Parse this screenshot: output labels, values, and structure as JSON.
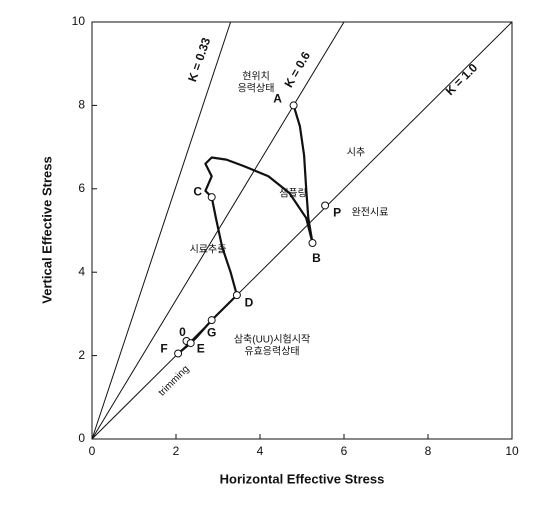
{
  "chart_data": {
    "type": "line",
    "xlabel": "Horizontal Effective Stress",
    "ylabel": "Vertical Effective Stress",
    "xlim": [
      0,
      10
    ],
    "ylim": [
      0,
      10
    ],
    "xticks": [
      0,
      2,
      4,
      6,
      8,
      10
    ],
    "yticks": [
      0,
      2,
      4,
      6,
      8,
      10
    ],
    "reference_lines": [
      {
        "label": "K = 0.33",
        "k": 0.33
      },
      {
        "label": "K = 0.6",
        "k": 0.6
      },
      {
        "label": "K = 1.0",
        "k": 1.0
      }
    ],
    "series": [
      {
        "color": "#111111",
        "x": [
          4.8,
          4.95,
          5.05,
          5.1,
          5.15,
          5.25
        ],
        "values": [
          8.0,
          7.5,
          6.8,
          6.0,
          5.3,
          4.7
        ]
      },
      {
        "color": "#111111",
        "x": [
          5.25,
          5.1,
          4.7,
          4.2,
          3.6,
          3.2,
          2.85,
          2.7,
          2.85,
          2.7,
          2.85
        ],
        "values": [
          4.7,
          5.3,
          5.9,
          6.3,
          6.55,
          6.7,
          6.75,
          6.6,
          6.3,
          5.95,
          5.8
        ]
      },
      {
        "color": "#111111",
        "x": [
          2.85,
          2.95,
          3.1,
          3.3,
          3.45
        ],
        "values": [
          5.8,
          5.3,
          4.6,
          4.0,
          3.45
        ]
      },
      {
        "color": "#111111",
        "x": [
          3.45,
          3.1,
          2.85,
          2.5,
          2.35,
          2.05
        ],
        "values": [
          3.45,
          3.1,
          2.85,
          2.45,
          2.3,
          2.05
        ]
      }
    ],
    "points": [
      {
        "label": "A",
        "x": 4.8,
        "y": 8.0
      },
      {
        "label": "P",
        "x": 5.55,
        "y": 5.6
      },
      {
        "label": "B",
        "x": 5.25,
        "y": 4.7
      },
      {
        "label": "C",
        "x": 2.85,
        "y": 5.8
      },
      {
        "label": "D",
        "x": 3.45,
        "y": 3.45
      },
      {
        "label": "G",
        "x": 2.85,
        "y": 2.85
      },
      {
        "label": "0",
        "x": 2.25,
        "y": 2.35
      },
      {
        "label": "E",
        "x": 2.35,
        "y": 2.3
      },
      {
        "label": "F",
        "x": 2.05,
        "y": 2.05
      }
    ],
    "annotations": [
      "현위치",
      "응력상태",
      "시추",
      "샘플링",
      "완전시료",
      "시료추출",
      "삼축(UU)시험시작",
      "유효응력상태",
      "trimming"
    ]
  }
}
